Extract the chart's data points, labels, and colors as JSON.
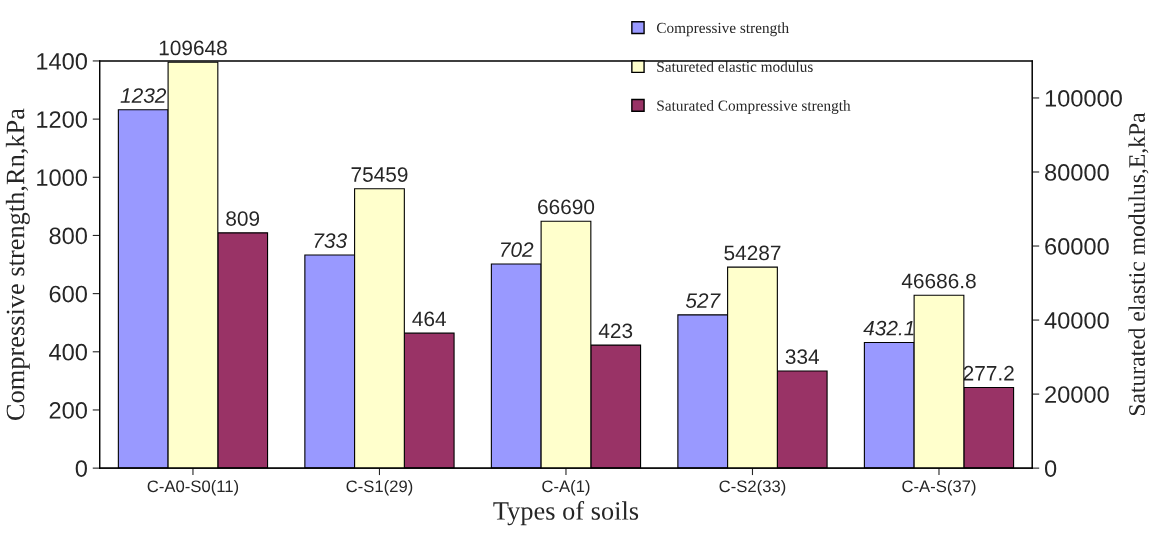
{
  "chart_data": {
    "type": "bar",
    "xlabel": "Types of soils",
    "ylabel": "Compressive strength,Rn,kPa",
    "y2label": "Saturated elastic modulus,E,kPa",
    "categories": [
      "C-A0-S0(11)",
      "C-S1(29)",
      "C-A(1)",
      "C-S2(33)",
      "C-A-S(37)"
    ],
    "series": [
      {
        "name": "Compressive strength",
        "color": "#9999ff",
        "values": [
          1232,
          733,
          702,
          527,
          432.1
        ]
      },
      {
        "name": "Satureted elastic modulus",
        "color": "#ffffcc",
        "values": [
          109648,
          75459,
          66690,
          54287,
          46686.8
        ],
        "axis": "y2"
      },
      {
        "name": "Saturated Compressive strength",
        "color": "#993366",
        "values": [
          809,
          464,
          423,
          334,
          277.2
        ]
      }
    ],
    "ylim": [
      0,
      1400
    ],
    "yticks": [
      0,
      200,
      400,
      600,
      800,
      1000,
      1200,
      1400
    ],
    "y2lim": [
      0,
      110000
    ],
    "y2ticks": [
      0,
      20000,
      40000,
      60000,
      80000,
      100000
    ],
    "data_labels": true,
    "grid": false,
    "legend": "top right"
  }
}
